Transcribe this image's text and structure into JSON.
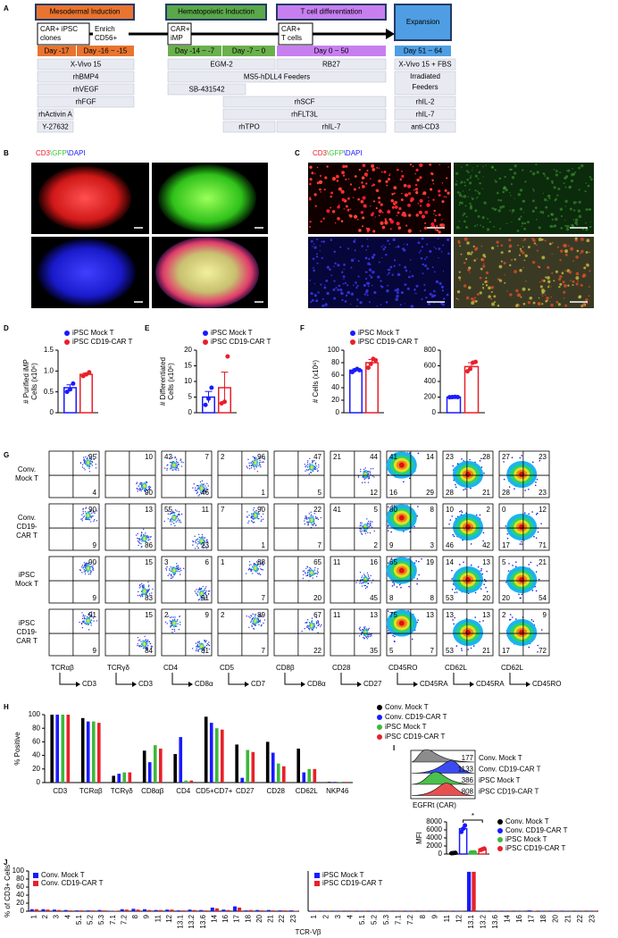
{
  "panel_labels": [
    "A",
    "B",
    "C",
    "D",
    "E",
    "F",
    "G",
    "H",
    "I",
    "J"
  ],
  "panel_a": {
    "stages": [
      "Mesodermal Induction",
      "Hematopoietic Induction",
      "T cell differentiation",
      "Expansion"
    ],
    "cells": [
      [
        "CAR+ iPSC",
        "clones"
      ],
      [
        "CAR+",
        "iMP"
      ],
      [
        "CAR+",
        "T cells"
      ]
    ],
    "enrich": [
      "Enrich",
      "CD56+"
    ],
    "day": "Day -14",
    "days": [
      "Day -17",
      "Day -16 ~ -15",
      "Day -14 ~ -7",
      "Day -7 ~ 0",
      "Day 0 ~ 50",
      "Day 51 ~ 64"
    ],
    "media": [
      "X-Vivo 15",
      "rhBMP4",
      "rhVEGF",
      "rhFGF",
      "rhActivin A",
      "Y-27632",
      "EGM-2",
      "MS5-hDLL4 Feeders",
      "SB-431542",
      "rhTPO",
      "RB27",
      "rhSCF",
      "rhFLT3L",
      "rhIL-7",
      "X-Vivo 15 + FBS",
      [
        "Irradiated",
        "Feeders"
      ],
      "rhIL-2",
      "rhIL-7",
      "anti-CD3"
    ]
  },
  "panel_b": {
    "stain": [
      "CD3",
      "\\GFP",
      "\\DAPI"
    ]
  },
  "panel_c": {
    "stain": [
      "CD3",
      "\\GFP",
      "\\DAPI"
    ]
  },
  "panel_g": {
    "rows": [
      [
        "Conv.",
        "Mock T"
      ],
      [
        "Conv.",
        "CD19-",
        "CAR T"
      ],
      [
        "iPSC",
        "Mock T"
      ],
      [
        "iPSC",
        "CD19-",
        "CAR T"
      ]
    ],
    "columns": [
      {
        "y": "TCRαβ",
        "x": "CD3"
      },
      {
        "y": "TCRγδ",
        "x": "CD3"
      },
      {
        "y": "CD4",
        "x": "CD8α"
      },
      {
        "y": "CD5",
        "x": "CD7"
      },
      {
        "y": "CD8β",
        "x": "CD8α"
      },
      {
        "y": "CD28",
        "x": "CD27"
      },
      {
        "y": "CD45RO",
        "x": "CD45RA"
      },
      {
        "y": "CD62L",
        "x": "CD45RA"
      },
      {
        "y": "CD62L",
        "x": "CD45RO"
      }
    ],
    "plots": [
      [
        {
          "tr": 95,
          "br": 4
        },
        {
          "tr": 10,
          "br": 90
        },
        {
          "tl": 42,
          "tr": 7,
          "br": 46
        },
        {
          "tl": 2,
          "tr": 96,
          "br": 1
        },
        {
          "tr": 47,
          "br": 5
        },
        {
          "tl": 21,
          "tr": 44,
          "br": 12
        },
        {
          "tl": 41,
          "tr": 14,
          "bl": 16,
          "br": 29
        },
        {
          "tl": 23,
          "tr": 28,
          "bl": 28,
          "br": 21
        },
        {
          "tl": 27,
          "tr": 23,
          "bl": 28,
          "br": 23
        }
      ],
      [
        {
          "tr": 90,
          "br": 9
        },
        {
          "tr": 13,
          "br": 86
        },
        {
          "tl": 55,
          "tr": 11,
          "br": 23
        },
        {
          "tl": 7,
          "tr": 90,
          "br": 1
        },
        {
          "tr": 22,
          "br": 7
        },
        {
          "tl": 41,
          "tr": 5,
          "br": 2
        },
        {
          "tl": 80,
          "tr": 8,
          "bl": 9,
          "br": 3
        },
        {
          "tl": 10,
          "tr": 2,
          "bl": 46,
          "br": 42
        },
        {
          "tl": 0,
          "tr": 12,
          "bl": 17,
          "br": 71
        }
      ],
      [
        {
          "tr": 90,
          "br": 9
        },
        {
          "tr": 15,
          "br": 83
        },
        {
          "tl": 3,
          "tr": 6,
          "br": 91
        },
        {
          "tl": 1,
          "tr": 88,
          "br": 7
        },
        {
          "tr": 65,
          "br": 20
        },
        {
          "tl": 11,
          "tr": 16,
          "br": 45
        },
        {
          "tl": 65,
          "tr": 19,
          "bl": 8,
          "br": 8
        },
        {
          "tl": 14,
          "tr": 13,
          "bl": 53,
          "br": 20
        },
        {
          "tl": 5,
          "tr": 21,
          "bl": 20,
          "br": 54
        }
      ],
      [
        {
          "tr": 91,
          "br": 9
        },
        {
          "tr": 15,
          "br": 84
        },
        {
          "tl": 2,
          "tr": 9,
          "br": 81
        },
        {
          "tl": 2,
          "tr": 89,
          "br": 7
        },
        {
          "tr": 67,
          "br": 22
        },
        {
          "tl": 11,
          "tr": 13,
          "br": 35
        },
        {
          "tl": 75,
          "tr": 13,
          "bl": 5,
          "br": 7
        },
        {
          "tl": 13,
          "tr": 13,
          "bl": 53,
          "br": 21
        },
        {
          "tl": 2,
          "tr": 9,
          "bl": 17,
          "br": 72
        }
      ]
    ]
  },
  "panel_i": {
    "names": [
      "Conv. Mock T",
      "Conv. CD19-CAR T",
      "iPSC Mock T",
      "iPSC CD19-CAR T"
    ],
    "mfi": [
      177,
      1133,
      386,
      808
    ],
    "xlabel": "EGFRt (CAR)"
  },
  "chart_data": [
    {
      "type": "bar",
      "ylabel": [
        "# Purified iMP",
        "Cells (x10⁶)"
      ],
      "categories": [
        null
      ],
      "ylim": [
        0,
        1.5
      ],
      "yticks": [
        0,
        0.5,
        {
          "value": 1,
          "label": "1.0"
        },
        1.5
      ],
      "series": [
        {
          "name": "iPSC Mock T",
          "color": "#1a1aff",
          "values": [
            0.6
          ],
          "errors": [
            0.07
          ],
          "points": [
            [
              0.5,
              0.56,
              0.7
            ]
          ]
        },
        {
          "name": "iPSC CD19-CAR T",
          "color": "#e8202a",
          "values": [
            0.92
          ],
          "errors": [
            0.03
          ],
          "points": [
            [
              0.88,
              0.92,
              0.97
            ]
          ]
        }
      ]
    },
    {
      "type": "bar",
      "ylabel": [
        "# Differentiated",
        "Cells (x10⁶)"
      ],
      "categories": [
        null
      ],
      "ylim": [
        0,
        20
      ],
      "yticks": [
        0,
        5,
        10,
        15,
        20
      ],
      "series": [
        {
          "name": "iPSC Mock T",
          "color": "#1a1aff",
          "values": [
            5
          ],
          "errors": [
            1.8
          ],
          "points": [
            [
              2.5,
              4.5,
              8
            ]
          ]
        },
        {
          "name": "iPSC CD19-CAR T",
          "color": "#e8202a",
          "values": [
            8
          ],
          "errors": [
            5
          ],
          "points": [
            [
              3,
              3.5,
              18
            ]
          ]
        }
      ]
    },
    {
      "type": "bar",
      "ylabel": "# Cells (x10⁶)",
      "categories": [
        null
      ],
      "ylim": [
        0,
        100
      ],
      "yticks": [
        0,
        20,
        40,
        60,
        80,
        100
      ],
      "series": [
        {
          "name": "iPSC Mock T",
          "color": "#1a1aff",
          "values": [
            68
          ],
          "errors": [
            2
          ],
          "points": [
            [
              65,
              68,
              70,
              68
            ]
          ]
        },
        {
          "name": "iPSC CD19-CAR T",
          "color": "#e8202a",
          "values": [
            80
          ],
          "errors": [
            5
          ],
          "points": [
            [
              72,
              78,
              86,
              84
            ]
          ]
        }
      ]
    },
    {
      "type": "bar",
      "categories": [
        null
      ],
      "ylim": [
        0,
        800
      ],
      "yticks": [
        0,
        200,
        400,
        600,
        800
      ],
      "series": [
        {
          "color": "#1a1aff",
          "values": [
            200
          ],
          "errors": [
            5
          ],
          "points": [
            [
              198,
              200,
              203,
              200
            ]
          ]
        },
        {
          "color": "#e8202a",
          "values": [
            590
          ],
          "errors": [
            50
          ],
          "points": [
            [
              530,
              560,
              640,
              650
            ]
          ]
        }
      ]
    },
    {
      "type": "bar",
      "ylabel": "% Positive",
      "categories": [
        "CD3",
        "TCRαβ",
        "TCRγδ",
        "CD8αβ",
        "CD4",
        "CD5+CD7+",
        "CD27",
        "CD28",
        "CD62L",
        "NKP46"
      ],
      "ylim": [
        0,
        100
      ],
      "yticks": [
        0,
        20,
        40,
        60,
        80,
        100
      ],
      "series": [
        {
          "name": "Conv. Mock T",
          "color": "#000000",
          "values": [
            100,
            95,
            10,
            47,
            42,
            97,
            56,
            60,
            50,
            1
          ]
        },
        {
          "name": "Conv. CD19-CAR T",
          "color": "#1a1aff",
          "values": [
            100,
            90,
            13,
            30,
            67,
            88,
            7,
            44,
            15,
            1
          ]
        },
        {
          "name": "iPSC Mock T",
          "color": "#3cb83c",
          "values": [
            100,
            90,
            15,
            55,
            3,
            80,
            48,
            28,
            20,
            1
          ]
        },
        {
          "name": "iPSC CD19-CAR T",
          "color": "#e8202a",
          "values": [
            100,
            88,
            15,
            50,
            3,
            78,
            45,
            24,
            20,
            1
          ]
        }
      ]
    },
    {
      "type": "bar",
      "ylabel": "MFI",
      "categories": [
        null
      ],
      "annotation": "*",
      "ylim": [
        0,
        8000
      ],
      "yticks": [
        0,
        2000,
        4000,
        6000,
        8000
      ],
      "series": [
        {
          "name": "Conv. Mock T",
          "color": "#000000",
          "values": [
            250
          ],
          "points": [
            [
              200,
              250,
              300
            ]
          ]
        },
        {
          "name": "Conv. CD19-CAR T",
          "color": "#1a1aff",
          "values": [
            6300
          ],
          "points": [
            [
              5500,
              6300,
              7100
            ]
          ]
        },
        {
          "name": "iPSC Mock T",
          "color": "#3cb83c",
          "values": [
            400
          ],
          "points": [
            [
              380,
              400,
              420
            ]
          ]
        },
        {
          "name": "iPSC CD19-CAR T",
          "color": "#e8202a",
          "values": [
            1200
          ],
          "points": [
            [
              1000,
              1200,
              1350
            ]
          ]
        }
      ]
    },
    {
      "type": "bar",
      "ylabel": "% of CD3+ Cells",
      "xlabel": "TCR-Vβ",
      "categories": [
        "1",
        "2",
        "3",
        "4",
        "5.1",
        "5.2",
        "5.3",
        "7.1",
        "7.2",
        "8",
        "9",
        "11",
        "12",
        "13.1",
        "13.2",
        "13.6",
        "14",
        "16",
        "17",
        "18",
        "20",
        "21",
        "22",
        "23"
      ],
      "ylim": [
        0,
        100
      ],
      "yticks": [
        0,
        20,
        40,
        60,
        80,
        100
      ],
      "series": [
        {
          "name": "Conv. Mock T",
          "color": "#1a1aff",
          "values": [
            5,
            5,
            4,
            3,
            2,
            2,
            3,
            1,
            5,
            6,
            5,
            3,
            4,
            2,
            4,
            3,
            9,
            4,
            12,
            2,
            3,
            3,
            2,
            2
          ]
        },
        {
          "name": "Conv. CD19-CAR T",
          "color": "#e8202a",
          "values": [
            5,
            4,
            3,
            2,
            2,
            2,
            2,
            1,
            4,
            4,
            3,
            3,
            4,
            2,
            3,
            2,
            7,
            3,
            9,
            3,
            2,
            2,
            2,
            1
          ]
        }
      ]
    },
    {
      "type": "bar",
      "categories": [
        "1",
        "2",
        "3",
        "4",
        "5.1",
        "5.2",
        "5.3",
        "7.1",
        "7.2",
        "8",
        "9",
        "11",
        "12",
        "13.1",
        "13.2",
        "13.6",
        "14",
        "16",
        "17",
        "18",
        "20",
        "21",
        "22",
        "23"
      ],
      "ylim": [
        0,
        100
      ],
      "series": [
        {
          "name": "iPSC Mock T",
          "color": "#1a1aff",
          "values": [
            1,
            1,
            1,
            0.5,
            1,
            1,
            0.5,
            0.5,
            1,
            0.5,
            0.5,
            0.5,
            1,
            98,
            1,
            1,
            1,
            0.5,
            2,
            1,
            1,
            1,
            0.5,
            0.5
          ]
        },
        {
          "name": "iPSC CD19-CAR T",
          "color": "#e8202a",
          "values": [
            0.5,
            0.5,
            0.5,
            0.5,
            0.5,
            0.5,
            0.5,
            0.5,
            0.5,
            0.5,
            0.5,
            0.5,
            0.5,
            98,
            0.5,
            0.5,
            0.5,
            0.5,
            1,
            0.5,
            0.5,
            0.5,
            0.5,
            0.5
          ]
        }
      ]
    }
  ]
}
